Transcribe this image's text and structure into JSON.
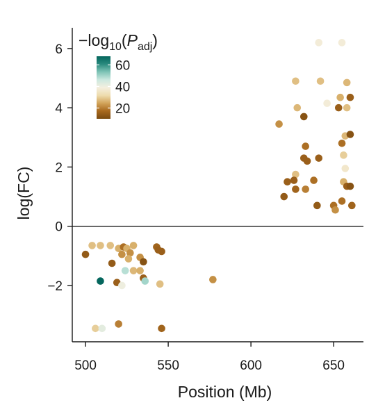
{
  "chart_data": {
    "type": "scatter",
    "xlabel": "Position (Mb)",
    "ylabel": "log(FC)",
    "xlim": [
      492,
      668
    ],
    "ylim": [
      -3.9,
      6.7
    ],
    "xticks": [
      500,
      550,
      600,
      650
    ],
    "yticks": [
      -2,
      0,
      2,
      4,
      6
    ],
    "x_tick_labels": [
      "500",
      "550",
      "600",
      "650"
    ],
    "y_tick_labels": [
      "−2",
      "0",
      "2",
      "4",
      "6"
    ],
    "zero_line": 0,
    "grid": false,
    "legend": {
      "title_main": "−log",
      "title_sub10": "10",
      "title_paren_open": "(",
      "title_p": "P",
      "title_sub_adj": "adj",
      "title_paren_close": ")",
      "placement": "top-left",
      "ticks": [
        20,
        40,
        60
      ],
      "tick_labels": [
        "20",
        "40",
        "60"
      ],
      "range": [
        10,
        68
      ],
      "colormap": [
        "#7a4a10",
        "#a8691e",
        "#d2a45a",
        "#eedcae",
        "#f4efdf",
        "#cbe8df",
        "#7ec3b6",
        "#2a8a7e",
        "#04665d"
      ]
    },
    "points": [
      {
        "x": 641,
        "y": 6.2,
        "p": 38
      },
      {
        "x": 655,
        "y": 6.2,
        "p": 38
      },
      {
        "x": 627,
        "y": 4.9,
        "p": 28
      },
      {
        "x": 642,
        "y": 4.9,
        "p": 28
      },
      {
        "x": 658,
        "y": 4.85,
        "p": 27
      },
      {
        "x": 654,
        "y": 4.35,
        "p": 26
      },
      {
        "x": 660,
        "y": 4.35,
        "p": 15
      },
      {
        "x": 646,
        "y": 4.15,
        "p": 38
      },
      {
        "x": 628,
        "y": 4.0,
        "p": 27
      },
      {
        "x": 653,
        "y": 4.0,
        "p": 15
      },
      {
        "x": 658,
        "y": 4.0,
        "p": 28
      },
      {
        "x": 632,
        "y": 3.7,
        "p": 12
      },
      {
        "x": 617,
        "y": 3.45,
        "p": 22
      },
      {
        "x": 657,
        "y": 3.05,
        "p": 27
      },
      {
        "x": 660,
        "y": 3.1,
        "p": 12
      },
      {
        "x": 633,
        "y": 2.7,
        "p": 18
      },
      {
        "x": 655,
        "y": 2.8,
        "p": 18
      },
      {
        "x": 656,
        "y": 2.4,
        "p": 30
      },
      {
        "x": 632,
        "y": 2.3,
        "p": 15
      },
      {
        "x": 634,
        "y": 2.2,
        "p": 15
      },
      {
        "x": 641,
        "y": 2.3,
        "p": 15
      },
      {
        "x": 657,
        "y": 1.95,
        "p": 36
      },
      {
        "x": 627,
        "y": 1.75,
        "p": 28
      },
      {
        "x": 622,
        "y": 1.5,
        "p": 15
      },
      {
        "x": 626,
        "y": 1.55,
        "p": 15
      },
      {
        "x": 638,
        "y": 1.55,
        "p": 18
      },
      {
        "x": 656,
        "y": 1.5,
        "p": 26
      },
      {
        "x": 627,
        "y": 1.25,
        "p": 16
      },
      {
        "x": 633,
        "y": 1.25,
        "p": 20
      },
      {
        "x": 658,
        "y": 1.35,
        "p": 15
      },
      {
        "x": 660,
        "y": 1.35,
        "p": 12
      },
      {
        "x": 620,
        "y": 1.0,
        "p": 14
      },
      {
        "x": 655,
        "y": 0.85,
        "p": 18
      },
      {
        "x": 640,
        "y": 0.7,
        "p": 14
      },
      {
        "x": 650,
        "y": 0.7,
        "p": 18
      },
      {
        "x": 651,
        "y": 0.55,
        "p": 22
      },
      {
        "x": 661,
        "y": 0.7,
        "p": 16
      },
      {
        "x": 504,
        "y": -0.65,
        "p": 28
      },
      {
        "x": 509,
        "y": -0.65,
        "p": 28
      },
      {
        "x": 515,
        "y": -0.65,
        "p": 28
      },
      {
        "x": 520,
        "y": -0.75,
        "p": 26
      },
      {
        "x": 523,
        "y": -0.7,
        "p": 18
      },
      {
        "x": 525,
        "y": -0.75,
        "p": 26
      },
      {
        "x": 529,
        "y": -0.65,
        "p": 26
      },
      {
        "x": 543,
        "y": -0.7,
        "p": 16
      },
      {
        "x": 544,
        "y": -0.8,
        "p": 15
      },
      {
        "x": 500,
        "y": -0.95,
        "p": 14
      },
      {
        "x": 522,
        "y": -0.95,
        "p": 22
      },
      {
        "x": 527,
        "y": -0.9,
        "p": 22
      },
      {
        "x": 546,
        "y": -0.85,
        "p": 15
      },
      {
        "x": 526,
        "y": -1.1,
        "p": 26
      },
      {
        "x": 533,
        "y": -1.05,
        "p": 22
      },
      {
        "x": 516,
        "y": -1.25,
        "p": 14
      },
      {
        "x": 535,
        "y": -1.2,
        "p": 12
      },
      {
        "x": 524,
        "y": -1.5,
        "p": 48
      },
      {
        "x": 529,
        "y": -1.5,
        "p": 27
      },
      {
        "x": 533,
        "y": -1.5,
        "p": 26
      },
      {
        "x": 577,
        "y": -1.8,
        "p": 22
      },
      {
        "x": 535,
        "y": -1.75,
        "p": 15
      },
      {
        "x": 509,
        "y": -1.85,
        "p": 70
      },
      {
        "x": 519,
        "y": -1.9,
        "p": 15
      },
      {
        "x": 536,
        "y": -1.85,
        "p": 50
      },
      {
        "x": 545,
        "y": -1.95,
        "p": 28
      },
      {
        "x": 522,
        "y": -2.0,
        "p": 40
      },
      {
        "x": 520,
        "y": -3.3,
        "p": 20
      },
      {
        "x": 506,
        "y": -3.45,
        "p": 30
      },
      {
        "x": 510,
        "y": -3.45,
        "p": 42
      },
      {
        "x": 546,
        "y": -3.45,
        "p": 16
      }
    ]
  }
}
